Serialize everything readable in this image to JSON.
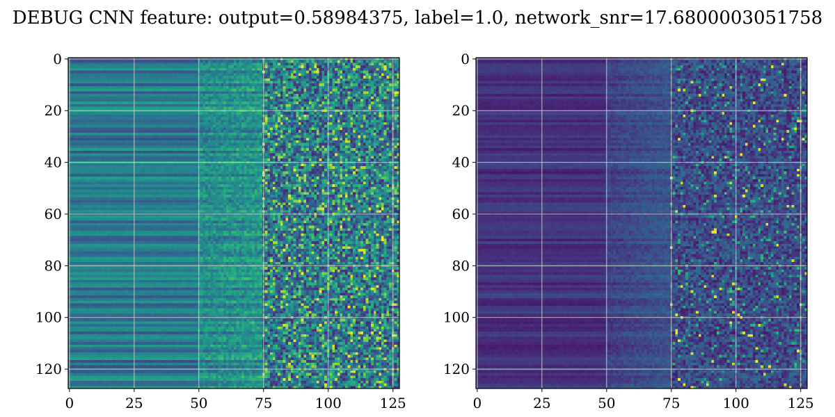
{
  "figure": {
    "suptitle": "DEBUG CNN feature: output=0.58984375, label=1.0, network_snr=17.6800003051758"
  },
  "chart_data": [
    {
      "type": "heatmap",
      "title": "",
      "xlabel": "",
      "ylabel": "",
      "colormap": "viridis",
      "rows": 128,
      "cols": 128,
      "xlim": [
        -0.5,
        127.5
      ],
      "ylim": [
        127.5,
        -0.5
      ],
      "y_inverted": true,
      "grid": true,
      "xticks": [
        0,
        25,
        50,
        75,
        100,
        125
      ],
      "yticks": [
        0,
        20,
        40,
        60,
        80,
        100,
        120
      ],
      "xtick_labels": [
        "0",
        "25",
        "50",
        "75",
        "100",
        "125"
      ],
      "ytick_labels": [
        "0",
        "20",
        "40",
        "60",
        "80",
        "100",
        "120"
      ],
      "pattern": "columns 0-50 show low-to-mid horizontal striped intensities (blue/teal); columns 75-127 show sparse high values (green/yellow speckles)"
    },
    {
      "type": "heatmap",
      "title": "",
      "xlabel": "",
      "ylabel": "",
      "colormap": "viridis",
      "rows": 128,
      "cols": 128,
      "xlim": [
        -0.5,
        127.5
      ],
      "ylim": [
        127.5,
        -0.5
      ],
      "y_inverted": true,
      "grid": true,
      "xticks": [
        0,
        25,
        50,
        75,
        100,
        125
      ],
      "yticks": [
        0,
        20,
        40,
        60,
        80,
        100,
        120
      ],
      "xtick_labels": [
        "0",
        "25",
        "50",
        "75",
        "100",
        "125"
      ],
      "ytick_labels": [
        "0",
        "20",
        "40",
        "60",
        "80",
        "100",
        "120"
      ],
      "pattern": "mostly dark purple; columns 70-127 show sparse teal/green speckles with rare yellow maxima"
    }
  ]
}
